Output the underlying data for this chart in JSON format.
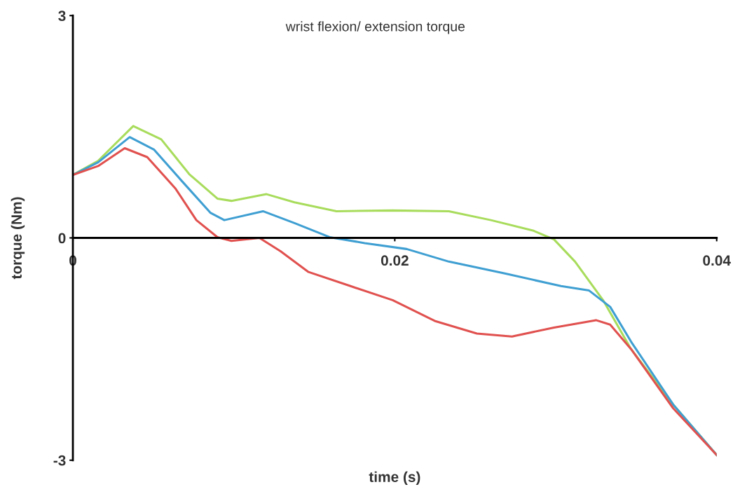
{
  "chart_data": {
    "type": "line",
    "title": "wrist flexion/ extension torque",
    "xlabel": "time (s)",
    "ylabel": "torque (Nm)",
    "xlim": [
      0,
      0.04
    ],
    "xticks": [
      0,
      0.02,
      0.04
    ],
    "ylim": [
      -3,
      3
    ],
    "yticks": [
      -3,
      0,
      3
    ],
    "grid": false,
    "marker": "none",
    "line_style": "solid",
    "series": [
      {
        "color": "#a8dc5c",
        "x": [
          0,
          0.00157,
          0.00375,
          0.00549,
          0.00723,
          0.00898,
          0.00985,
          0.01203,
          0.01377,
          0.01638,
          0.01987,
          0.02336,
          0.02597,
          0.02858,
          0.02989,
          0.0312,
          0.03294,
          0.03468,
          0.0373,
          0.04
        ],
        "values": [
          0.85,
          1.04,
          1.51,
          1.33,
          0.86,
          0.53,
          0.5,
          0.59,
          0.48,
          0.36,
          0.37,
          0.36,
          0.24,
          0.1,
          -0.02,
          -0.32,
          -0.84,
          -1.5,
          -2.25,
          -2.93
        ]
      },
      {
        "color": "#3f9fd2",
        "x": [
          0,
          0.00157,
          0.00353,
          0.00505,
          0.0068,
          0.00854,
          0.00941,
          0.01181,
          0.01377,
          0.01595,
          0.01813,
          0.02074,
          0.02336,
          0.02684,
          0.03033,
          0.03207,
          0.03338,
          0.03468,
          0.0373,
          0.04
        ],
        "values": [
          0.85,
          1.02,
          1.36,
          1.19,
          0.76,
          0.34,
          0.24,
          0.36,
          0.2,
          0.01,
          -0.07,
          -0.15,
          -0.32,
          -0.48,
          -0.65,
          -0.71,
          -0.93,
          -1.4,
          -2.25,
          -2.93
        ]
      },
      {
        "color": "#e0514f",
        "x": [
          0,
          0.00157,
          0.00322,
          0.00462,
          0.00636,
          0.00767,
          0.00898,
          0.00985,
          0.01159,
          0.0129,
          0.01464,
          0.01725,
          0.01987,
          0.02248,
          0.0251,
          0.02728,
          0.02989,
          0.0325,
          0.03338,
          0.03468,
          0.0373,
          0.04
        ],
        "values": [
          0.85,
          0.97,
          1.21,
          1.09,
          0.67,
          0.24,
          0.01,
          -0.04,
          0,
          -0.18,
          -0.46,
          -0.65,
          -0.84,
          -1.12,
          -1.29,
          -1.33,
          -1.21,
          -1.11,
          -1.17,
          -1.5,
          -2.3,
          -2.93
        ]
      }
    ]
  }
}
